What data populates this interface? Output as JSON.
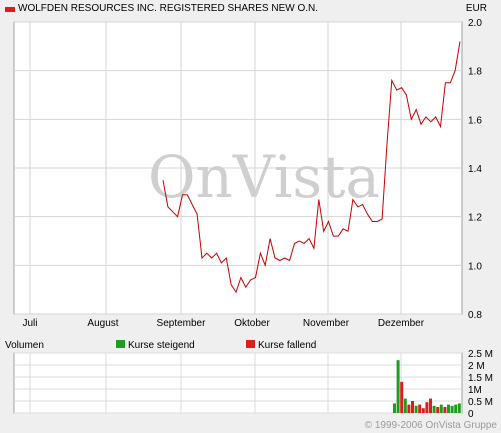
{
  "header": {
    "title": "WOLFDEN RESOURCES INC. REGISTERED SHARES NEW O.N.",
    "currency": "EUR",
    "swatch_color": "#e11919"
  },
  "watermark": "OnVista",
  "copyright": "© 1999-2006 OnVista Gruppe",
  "chart_data": [
    {
      "type": "line",
      "title": "WOLFDEN RESOURCES INC. REGISTERED SHARES NEW O.N.",
      "ylabel": "EUR",
      "ylim": [
        0.8,
        2.0
      ],
      "grid": true,
      "line_color": "#c80000",
      "x_tick_labels": [
        "Juli",
        "August",
        "September",
        "Oktober",
        "November",
        "Dezember"
      ],
      "y_tick_labels": [
        "0.8",
        "1.0",
        "1.2",
        "1.4",
        "1.6",
        "1.8",
        "2.0"
      ],
      "series": [
        {
          "values": [
            1.35,
            1.24,
            1.22,
            1.2,
            1.29,
            1.29,
            1.25,
            1.21,
            1.03,
            1.05,
            1.03,
            1.05,
            1.01,
            1.03,
            0.92,
            0.89,
            0.95,
            0.91,
            0.94,
            0.95,
            1.05,
            1.0,
            1.11,
            1.03,
            1.02,
            1.03,
            1.02,
            1.09,
            1.1,
            1.09,
            1.11,
            1.07,
            1.27,
            1.14,
            1.18,
            1.12,
            1.12,
            1.15,
            1.14,
            1.27,
            1.24,
            1.25,
            1.21,
            1.18,
            1.18,
            1.19,
            1.5,
            1.76,
            1.72,
            1.73,
            1.7,
            1.6,
            1.64,
            1.58,
            1.61,
            1.59,
            1.61,
            1.57,
            1.75,
            1.75,
            1.8,
            1.92
          ]
        }
      ]
    },
    {
      "type": "bar",
      "title": "Volumen",
      "ylim": [
        0,
        2.5
      ],
      "y_tick_labels": [
        "0",
        "0.5 M",
        "1M",
        "1.5 M",
        "2 M",
        "2.5 M"
      ],
      "legend": [
        {
          "name": "Kurse steigend",
          "color": "#1e9e1e"
        },
        {
          "name": "Kurse fallend",
          "color": "#dc1e1e"
        }
      ],
      "legend_placement": "top",
      "bars": [
        {
          "value": 0.4,
          "dir": "up"
        },
        {
          "value": 2.2,
          "dir": "up"
        },
        {
          "value": 1.3,
          "dir": "down"
        },
        {
          "value": 0.6,
          "dir": "up"
        },
        {
          "value": 0.35,
          "dir": "down"
        },
        {
          "value": 0.5,
          "dir": "down"
        },
        {
          "value": 0.3,
          "dir": "up"
        },
        {
          "value": 0.35,
          "dir": "down"
        },
        {
          "value": 0.2,
          "dir": "down"
        },
        {
          "value": 0.45,
          "dir": "down"
        },
        {
          "value": 0.6,
          "dir": "down"
        },
        {
          "value": 0.3,
          "dir": "up"
        },
        {
          "value": 0.25,
          "dir": "down"
        },
        {
          "value": 0.35,
          "dir": "up"
        },
        {
          "value": 0.25,
          "dir": "down"
        },
        {
          "value": 0.35,
          "dir": "up"
        },
        {
          "value": 0.3,
          "dir": "up"
        },
        {
          "value": 0.35,
          "dir": "up"
        },
        {
          "value": 0.4,
          "dir": "up"
        }
      ]
    }
  ]
}
